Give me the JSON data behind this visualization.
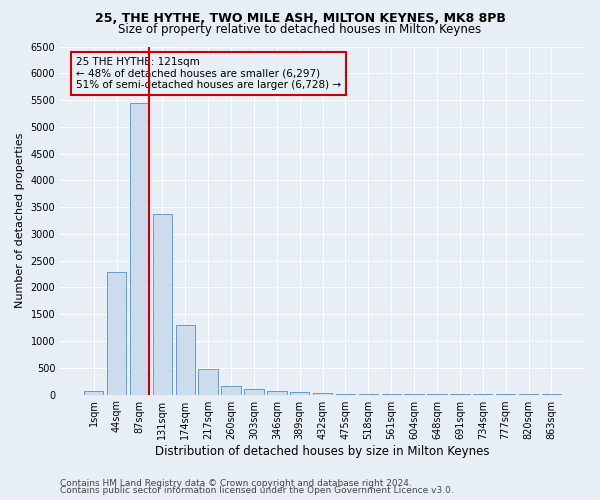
{
  "title1": "25, THE HYTHE, TWO MILE ASH, MILTON KEYNES, MK8 8PB",
  "title2": "Size of property relative to detached houses in Milton Keynes",
  "xlabel": "Distribution of detached houses by size in Milton Keynes",
  "ylabel": "Number of detached properties",
  "footer1": "Contains HM Land Registry data © Crown copyright and database right 2024.",
  "footer2": "Contains public sector information licensed under the Open Government Licence v3.0.",
  "bin_labels": [
    "1sqm",
    "44sqm",
    "87sqm",
    "131sqm",
    "174sqm",
    "217sqm",
    "260sqm",
    "303sqm",
    "346sqm",
    "389sqm",
    "432sqm",
    "475sqm",
    "518sqm",
    "561sqm",
    "604sqm",
    "648sqm",
    "691sqm",
    "734sqm",
    "777sqm",
    "820sqm",
    "863sqm"
  ],
  "bar_values": [
    60,
    2280,
    5450,
    3380,
    1300,
    480,
    165,
    100,
    70,
    40,
    30,
    20,
    10,
    5,
    5,
    5,
    3,
    3,
    3,
    2,
    2
  ],
  "bar_color": "#ccdcec",
  "bar_edge_color": "#6699cc",
  "vline_x_bin": 2,
  "vline_color": "#cc0000",
  "annotation_text": "25 THE HYTHE: 121sqm\n← 48% of detached houses are smaller (6,297)\n51% of semi-detached houses are larger (6,728) →",
  "annotation_box_color": "#cc0000",
  "ylim_max": 6500,
  "ytick_step": 500,
  "bg_color": "#e8eef5",
  "grid_color": "#ffffff",
  "title1_fontsize": 9,
  "title2_fontsize": 8.5,
  "xlabel_fontsize": 8.5,
  "ylabel_fontsize": 8,
  "tick_fontsize": 7,
  "footer_fontsize": 6.5,
  "annot_fontsize": 7.5
}
